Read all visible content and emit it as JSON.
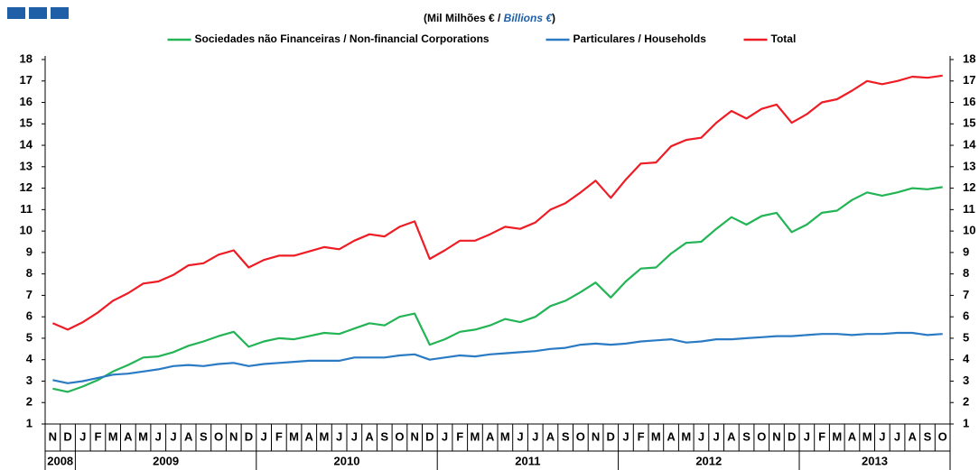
{
  "chart_data": {
    "type": "line",
    "subtitle": [
      "(Mil Milhões € / ",
      "Billions €",
      ")"
    ],
    "categories": [
      "N",
      "D",
      "J",
      "F",
      "M",
      "A",
      "M",
      "J",
      "J",
      "A",
      "S",
      "O",
      "N",
      "D",
      "J",
      "F",
      "M",
      "A",
      "M",
      "J",
      "J",
      "A",
      "S",
      "O",
      "N",
      "D",
      "J",
      "F",
      "M",
      "A",
      "M",
      "J",
      "J",
      "A",
      "S",
      "O",
      "N",
      "D",
      "J",
      "F",
      "M",
      "A",
      "M",
      "J",
      "J",
      "A",
      "S",
      "O",
      "N",
      "D",
      "J",
      "F",
      "M",
      "A",
      "M",
      "J",
      "J",
      "A",
      "S",
      "O"
    ],
    "years": [
      "2008",
      "2009",
      "2010",
      "2011",
      "2012",
      "2013"
    ],
    "series": [
      {
        "name": "Sociedades não Financeiras / Non-financial Corporations",
        "color": "#22b455",
        "values": [
          2.65,
          2.5,
          2.75,
          3.05,
          3.45,
          3.75,
          4.1,
          4.15,
          4.35,
          4.65,
          4.85,
          5.1,
          5.3,
          4.6,
          4.85,
          5.0,
          4.95,
          5.1,
          5.25,
          5.2,
          5.45,
          5.7,
          5.6,
          6.0,
          6.15,
          4.7,
          4.95,
          5.3,
          5.4,
          5.6,
          5.9,
          5.75,
          6.0,
          6.5,
          6.75,
          7.15,
          7.6,
          6.9,
          7.65,
          8.25,
          8.3,
          8.95,
          9.45,
          9.5,
          10.1,
          10.65,
          10.3,
          10.7,
          10.85,
          9.95,
          10.3,
          10.85,
          10.95,
          11.45,
          11.8,
          11.65,
          11.8,
          12.0,
          11.95,
          12.05
        ]
      },
      {
        "name": "Particulares / Households",
        "color": "#2a7bc4",
        "values": [
          3.05,
          2.9,
          3.0,
          3.15,
          3.3,
          3.35,
          3.45,
          3.55,
          3.7,
          3.75,
          3.7,
          3.8,
          3.85,
          3.7,
          3.8,
          3.85,
          3.9,
          3.95,
          3.95,
          3.95,
          4.1,
          4.1,
          4.1,
          4.2,
          4.25,
          4.0,
          4.1,
          4.2,
          4.15,
          4.25,
          4.3,
          4.35,
          4.4,
          4.5,
          4.55,
          4.7,
          4.75,
          4.7,
          4.75,
          4.85,
          4.9,
          4.95,
          4.8,
          4.85,
          4.95,
          4.95,
          5.0,
          5.05,
          5.1,
          5.1,
          5.15,
          5.2,
          5.2,
          5.15,
          5.2,
          5.2,
          5.25,
          5.25,
          5.15,
          5.2
        ]
      },
      {
        "name": "Total",
        "color": "#ee1c24",
        "values": [
          5.7,
          5.4,
          5.75,
          6.2,
          6.75,
          7.1,
          7.55,
          7.65,
          7.95,
          8.4,
          8.5,
          8.9,
          9.1,
          8.3,
          8.65,
          8.85,
          8.85,
          9.05,
          9.25,
          9.15,
          9.55,
          9.85,
          9.75,
          10.2,
          10.45,
          8.7,
          9.1,
          9.55,
          9.55,
          9.85,
          10.2,
          10.1,
          10.4,
          11.0,
          11.3,
          11.8,
          12.35,
          11.55,
          12.4,
          13.15,
          13.2,
          13.95,
          14.25,
          14.35,
          15.05,
          15.6,
          15.25,
          15.7,
          15.9,
          15.05,
          15.45,
          16.0,
          16.15,
          16.55,
          17.0,
          16.85,
          17.0,
          17.2,
          17.15,
          17.25
        ]
      }
    ],
    "ylim": [
      1,
      18
    ],
    "yticks": [
      1,
      2,
      3,
      4,
      5,
      6,
      7,
      8,
      9,
      10,
      11,
      12,
      13,
      14,
      15,
      16,
      17,
      18
    ]
  }
}
